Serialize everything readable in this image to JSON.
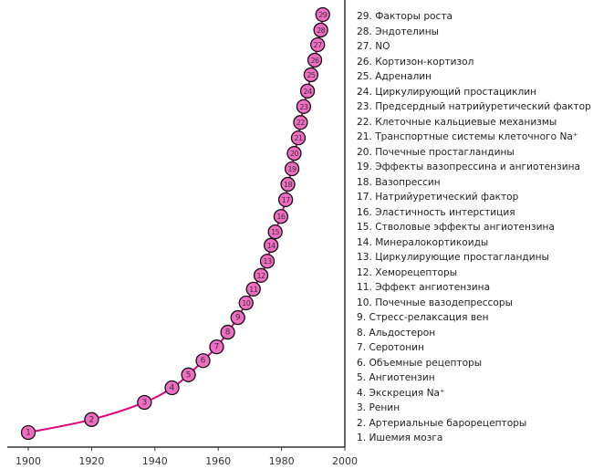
{
  "chart_data": {
    "type": "scatter",
    "title": "",
    "xlabel": "",
    "ylabel": "",
    "xlim": [
      1900,
      2000
    ],
    "ylim": [
      0,
      100
    ],
    "xticks": [
      "1900",
      "1920",
      "1940",
      "1960",
      "1980",
      "2000"
    ],
    "grid": false,
    "legend_placement": "right",
    "colors": {
      "line": "#e2007a",
      "marker_fill": "#f36cc4",
      "marker_stroke": "#111111"
    },
    "points": [
      {
        "n": "1",
        "x": 1900,
        "y": 0
      },
      {
        "n": "2",
        "x": 1920,
        "y": 3.1
      },
      {
        "n": "3",
        "x": 1936.7,
        "y": 7.2
      },
      {
        "n": "4",
        "x": 1945.4,
        "y": 10.7
      },
      {
        "n": "5",
        "x": 1950.6,
        "y": 13.8
      },
      {
        "n": "6",
        "x": 1955.2,
        "y": 17.2
      },
      {
        "n": "7",
        "x": 1959.5,
        "y": 20.5
      },
      {
        "n": "8",
        "x": 1963,
        "y": 24.0
      },
      {
        "n": "9",
        "x": 1966.2,
        "y": 27.5
      },
      {
        "n": "10",
        "x": 1968.8,
        "y": 31.0
      },
      {
        "n": "11",
        "x": 1971.1,
        "y": 34.3
      },
      {
        "n": "12",
        "x": 1973.5,
        "y": 37.6
      },
      {
        "n": "13",
        "x": 1975.5,
        "y": 41.0
      },
      {
        "n": "14",
        "x": 1976.7,
        "y": 44.8
      },
      {
        "n": "15",
        "x": 1978,
        "y": 48.0
      },
      {
        "n": "16",
        "x": 1979.8,
        "y": 51.7
      },
      {
        "n": "17",
        "x": 1981.3,
        "y": 55.7
      },
      {
        "n": "18",
        "x": 1982,
        "y": 59.4
      },
      {
        "n": "19",
        "x": 1983.3,
        "y": 63.1
      },
      {
        "n": "20",
        "x": 1984,
        "y": 66.8
      },
      {
        "n": "21",
        "x": 1985.3,
        "y": 70.5
      },
      {
        "n": "22",
        "x": 1986,
        "y": 74.2
      },
      {
        "n": "23",
        "x": 1987,
        "y": 78.0
      },
      {
        "n": "24",
        "x": 1988.2,
        "y": 81.7
      },
      {
        "n": "25",
        "x": 1989.3,
        "y": 85.6
      },
      {
        "n": "26",
        "x": 1990.5,
        "y": 89.1
      },
      {
        "n": "27",
        "x": 1991.4,
        "y": 92.8
      },
      {
        "n": "28",
        "x": 1992.4,
        "y": 96.3
      },
      {
        "n": "29",
        "x": 1993,
        "y": 100
      }
    ],
    "legend": [
      "29. Факторы роста",
      "28. Эндотелины",
      "27. NO",
      "26. Кортизон-кортизол",
      "25. Адреналин",
      "24. Циркулирующий простациклин",
      "23. Предсердный натрийуретический фактор",
      "22. Клеточные кальциевые механизмы",
      "21. Транспортные системы клеточного Na⁺",
      "20. Почечные простагландины",
      "19. Эффекты вазопрессина и ангиотензина",
      "18. Вазопрессин",
      "17. Натрийуретический фактор",
      "16. Эластичность интерстиция",
      "15. Стволовые эффекты ангиотензина",
      "14. Минералокортикоиды",
      "13. Циркулирующие простагландины",
      "12. Хеморецепторы",
      "11. Эффект ангиотензина",
      "10. Почечные вазодепрессоры",
      "9. Стресс-релаксация вен",
      "8. Альдостерон",
      "7. Серотонин",
      "6. Объемные рецепторы",
      "5. Ангиотензин",
      "4. Экскреция Na⁺",
      "3. Ренин",
      "2. Артериальные барорецепторы",
      "1. Ишемия мозга"
    ]
  }
}
